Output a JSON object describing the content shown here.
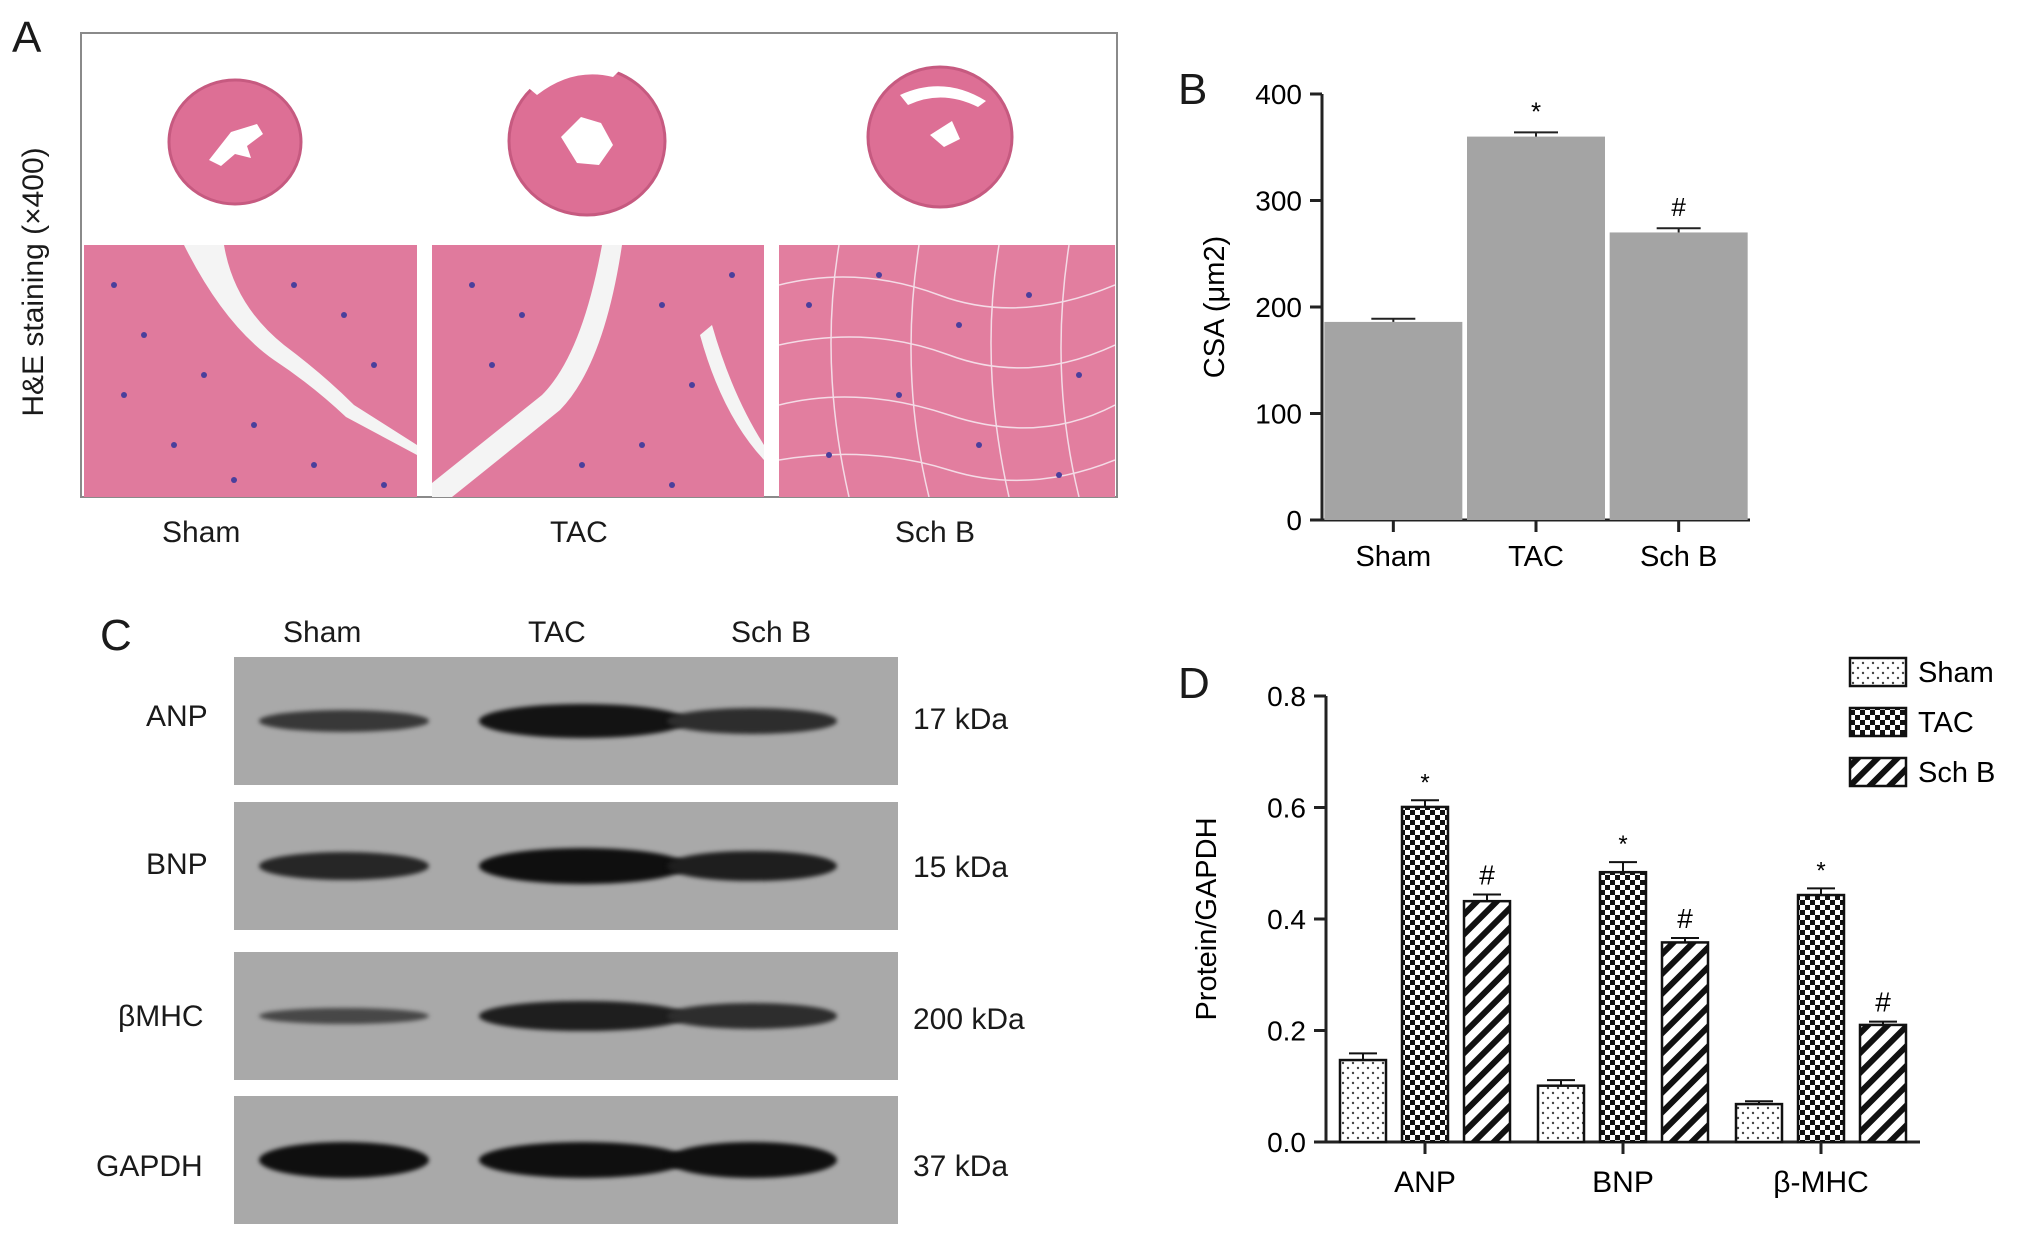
{
  "panel_a": {
    "letter": "A",
    "ylabel": "H&E staining (×400)",
    "groups": [
      "Sham",
      "TAC",
      "Sch B"
    ]
  },
  "panel_b": {
    "letter": "B",
    "chart_data": {
      "type": "bar",
      "categories": [
        "Sham",
        "TAC",
        "Sch B"
      ],
      "values": [
        186,
        360,
        270
      ],
      "errors": [
        3,
        4,
        4
      ],
      "annotations": [
        "",
        "*",
        "#"
      ],
      "ylabel": "CSA (μm2)",
      "ylim": [
        0,
        400
      ],
      "yticks": [
        0,
        100,
        200,
        300,
        400
      ],
      "bar_color": "#a4a4a4"
    }
  },
  "panel_c": {
    "letter": "C",
    "lanes": [
      "Sham",
      "TAC",
      "Sch B"
    ],
    "blots": [
      {
        "protein": "ANP",
        "size": "17 kDa",
        "intensity": [
          0.45,
          0.95,
          0.6
        ]
      },
      {
        "protein": "BNP",
        "size": "15 kDa",
        "intensity": [
          0.7,
          1.0,
          0.8
        ]
      },
      {
        "protein": "βMHC",
        "size": "200 kDa",
        "intensity": [
          0.25,
          0.8,
          0.6
        ]
      },
      {
        "protein": "GAPDH",
        "size": "37 kDa",
        "intensity": [
          1.0,
          1.0,
          1.0
        ]
      }
    ]
  },
  "panel_d": {
    "letter": "D",
    "chart_data": {
      "type": "bar",
      "categories": [
        "ANP",
        "BNP",
        "β-MHC"
      ],
      "series": [
        {
          "name": "Sham",
          "values": [
            0.147,
            0.101,
            0.068
          ],
          "errors": [
            0.012,
            0.01,
            0.005
          ],
          "annotations": [
            "",
            "",
            ""
          ],
          "pattern": "dots"
        },
        {
          "name": "TAC",
          "values": [
            0.601,
            0.484,
            0.443
          ],
          "errors": [
            0.012,
            0.018,
            0.012
          ],
          "annotations": [
            "*",
            "*",
            "*"
          ],
          "pattern": "checker"
        },
        {
          "name": "Sch B",
          "values": [
            0.432,
            0.358,
            0.21
          ],
          "errors": [
            0.012,
            0.008,
            0.006
          ],
          "annotations": [
            "#",
            "#",
            "#"
          ],
          "pattern": "diagonal"
        }
      ],
      "ylabel": "Protein/GAPDH",
      "ylim": [
        0,
        0.8
      ],
      "yticks": [
        "0.0",
        "0.2",
        "0.4",
        "0.6",
        "0.8"
      ],
      "legend_position": "top-right"
    }
  }
}
